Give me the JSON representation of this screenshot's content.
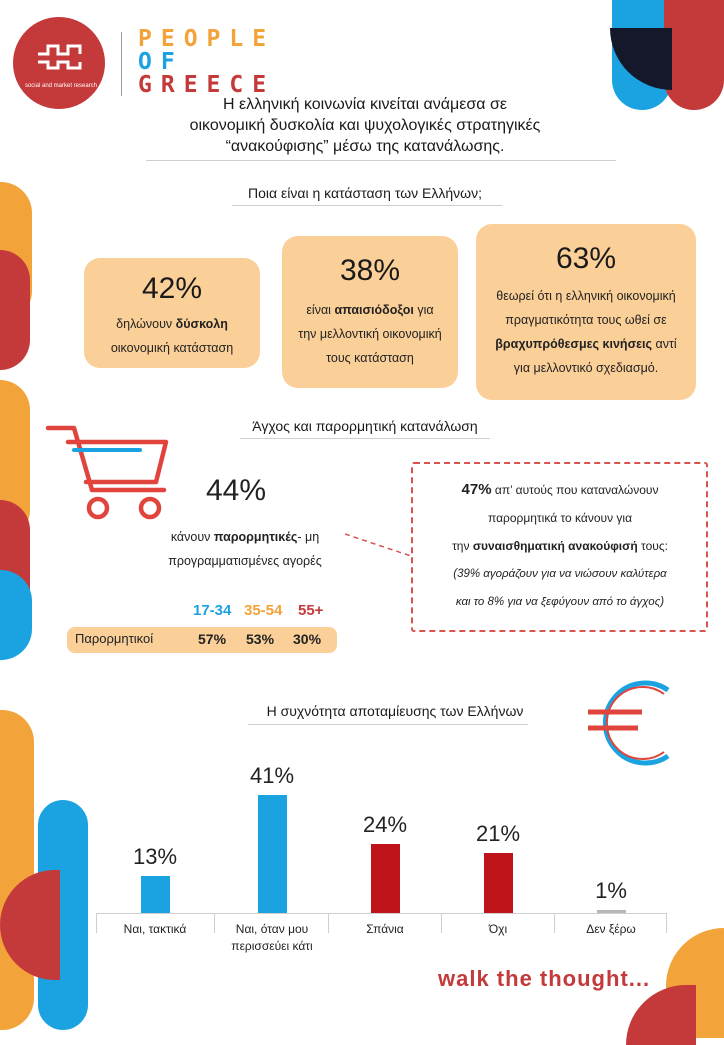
{
  "logo": {
    "subtitle": "social and market research",
    "brand_line1": "PEOPLE",
    "brand_line2": "OF",
    "brand_line3": "GREECE"
  },
  "title": {
    "line1": "Η ελληνική κοινωνία κινείται ανάμεσα σε",
    "line2": "οικονομική δυσκολία και ψυχολογικές στρατηγικές",
    "line3": "“ανακούφισης” μέσω της κατανάλωσης."
  },
  "situation": {
    "heading": "Ποια είναι η κατάσταση των Ελλήνων;",
    "cards": [
      {
        "pct": "42%",
        "pre": "δηλώνουν ",
        "bold": "δύσκολη",
        "post": "οικονομική κατάσταση"
      },
      {
        "pct": "38%",
        "pre": "είναι ",
        "bold": "απαισιόδοξοι",
        "mid": " για",
        "post": "την μελλοντική οικονομική",
        "post2": "τους κατάσταση"
      },
      {
        "pct": "63%",
        "pre": "θεωρεί ότι η ελληνική οικονομική",
        "pre2": "πραγματικότητα τους ωθεί σε",
        "bold": "βραχυπρόθεσμες κινήσεις",
        "mid": " αντί",
        "post": "για μελλοντικό σχεδιασμό."
      }
    ]
  },
  "impulse": {
    "heading": "Άγχος και παρορμητική κατανάλωση",
    "pct": "44%",
    "pre": "κάνουν ",
    "bold": "παρορμητικές",
    "post": "- μη",
    "line2": "προγραμματισμένες αγορές",
    "box": {
      "pct": "47%",
      "line1": " απ’ αυτούς που καταναλώνουν",
      "line2": "παρορμητικά το κάνουν  για",
      "line3_pre": "την ",
      "line3_bold": "συναισθηματική ανακούφισή",
      "line3_post": " τους:",
      "line4": "(39% αγοράζουν για να νιώσουν καλύτερα",
      "line5": "και το 8% για να ξεφύγουν από το άγχος)"
    },
    "ages": [
      {
        "label": "17-34",
        "color": "#1aa3e0"
      },
      {
        "label": "35-54",
        "color": "#f2a33a"
      },
      {
        "label": "55+",
        "color": "#c4393a"
      }
    ],
    "row_label": "Παρορμητικοί",
    "row_values": [
      "57%",
      "53%",
      "30%"
    ]
  },
  "savings": {
    "heading": "Η συχνότητα αποταμίευσης των Ελλήνων",
    "chart_data": {
      "type": "bar",
      "title": "Η συχνότητα αποταμίευσης των Ελλήνων",
      "categories": [
        "Ναι, τακτικά",
        "Ναι, όταν μου περισσεύει κάτι",
        "Σπάνια",
        "Όχι",
        "Δεν ξέρω"
      ],
      "values": [
        13,
        41,
        24,
        21,
        1
      ],
      "labels": [
        "13%",
        "41%",
        "24%",
        "21%",
        "1%"
      ],
      "colors": [
        "#1aa3e0",
        "#1aa3e0",
        "#c0141b",
        "#c0141b",
        "#b8b8b8"
      ],
      "ylim": [
        0,
        41
      ]
    }
  },
  "footer": {
    "tagline": "walk the thought..."
  },
  "colors": {
    "red": "#c4393a",
    "blue": "#1aa3e0",
    "orange": "#f2a33a",
    "peach": "#fbcf98",
    "navy": "#14182a"
  }
}
